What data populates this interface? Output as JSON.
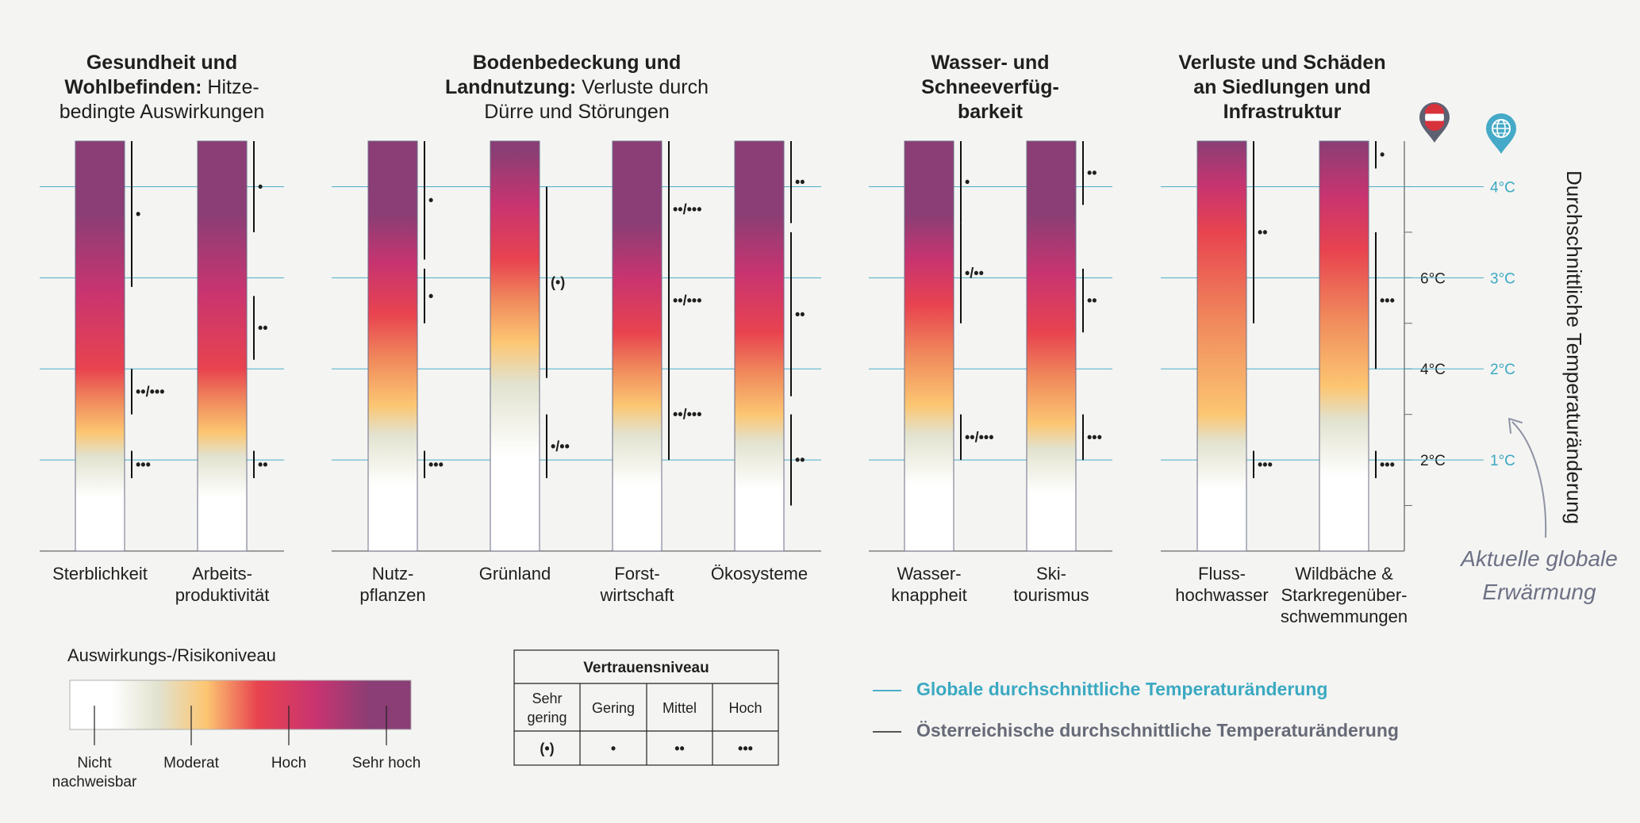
{
  "chart_data": {
    "type": "heatmap",
    "ylabel": "Durchschnittliche Temperaturänderung",
    "global_ticks": [
      "1°C",
      "2°C",
      "3°C",
      "4°C"
    ],
    "austria_ticks": [
      "2°C",
      "4°C",
      "6°C"
    ],
    "global_range_c": [
      0.0,
      4.5
    ],
    "austria_range_c": [
      0.0,
      9.0
    ],
    "current_warming_label": "Aktuelle globale Erwärmung",
    "groups": [
      {
        "title_bold": [
          "Gesundheit und",
          "Wohlbefinden:"
        ],
        "title_regular": [
          "Hitze-",
          "bedingte Auswirkungen"
        ],
        "bars": [
          {
            "label": [
              "Sterblichkeit"
            ],
            "stops_c": {
              "moderat": 1.3,
              "hoch": 2.0,
              "sehr_hoch": 3.7
            },
            "confidence": [
              {
                "text": "•••",
                "from_c": 0.8,
                "to_c": 1.1
              },
              {
                "text": "••/•••",
                "from_c": 1.5,
                "to_c": 2.0
              },
              {
                "text": "•",
                "from_c": 2.9,
                "to_c": 4.5
              }
            ]
          },
          {
            "label": [
              "Arbeits-",
              "produktivität"
            ],
            "stops_c": {
              "moderat": 1.3,
              "hoch": 2.0,
              "sehr_hoch": 3.7
            },
            "confidence": [
              {
                "text": "••",
                "from_c": 0.8,
                "to_c": 1.1
              },
              {
                "text": "••",
                "from_c": 2.1,
                "to_c": 2.8
              },
              {
                "text": "•",
                "from_c": 3.5,
                "to_c": 4.5
              }
            ]
          }
        ]
      },
      {
        "title_bold": [
          "Bodenbedeckung und",
          "Landnutzung:"
        ],
        "title_regular": [
          "Verluste durch",
          "Dürre und Störungen"
        ],
        "bars": [
          {
            "label": [
              "Nutz-",
              "pflanzen"
            ],
            "stops_c": {
              "moderat": 1.6,
              "hoch": 2.6,
              "sehr_hoch": 3.7
            },
            "confidence": [
              {
                "text": "•••",
                "from_c": 0.8,
                "to_c": 1.1
              },
              {
                "text": "•",
                "from_c": 2.5,
                "to_c": 3.1
              },
              {
                "text": "•",
                "from_c": 3.2,
                "to_c": 4.5
              }
            ]
          },
          {
            "label": [
              "Grünland"
            ],
            "stops_c": {
              "moderat": 2.3,
              "hoch": 3.2,
              "sehr_hoch": 4.4
            },
            "confidence": [
              {
                "text": "•/••",
                "from_c": 0.8,
                "to_c": 1.5
              },
              {
                "text": "(•)",
                "from_c": 1.9,
                "to_c": 4.0
              }
            ]
          },
          {
            "label": [
              "Forst-",
              "wirtschaft"
            ],
            "stops_c": {
              "moderat": 1.6,
              "hoch": 2.4,
              "sehr_hoch": 3.6
            },
            "confidence": [
              {
                "text": "••/•••",
                "from_c": 1.0,
                "to_c": 2.0
              },
              {
                "text": "••/•••",
                "from_c": 2.0,
                "to_c": 3.5
              },
              {
                "text": "••/•••",
                "from_c": 3.0,
                "to_c": 4.5
              }
            ]
          },
          {
            "label": [
              "Ökosysteme"
            ],
            "stops_c": {
              "moderat": 1.5,
              "hoch": 2.4,
              "sehr_hoch": 3.7
            },
            "confidence": [
              {
                "text": "••",
                "from_c": 0.5,
                "to_c": 1.5
              },
              {
                "text": "••",
                "from_c": 1.7,
                "to_c": 3.5
              },
              {
                "text": "••",
                "from_c": 3.6,
                "to_c": 4.5
              }
            ]
          }
        ]
      },
      {
        "title_bold": [
          "Wasser- und",
          "Schneeverfüg-",
          "barkeit"
        ],
        "title_regular": [],
        "bars": [
          {
            "label": [
              "Wasser-",
              "knappheit"
            ],
            "stops_c": {
              "moderat": 1.6,
              "hoch": 2.7,
              "sehr_hoch": 3.7
            },
            "confidence": [
              {
                "text": "••/•••",
                "from_c": 1.0,
                "to_c": 1.5
              },
              {
                "text": "•/••",
                "from_c": 2.5,
                "to_c": 3.6
              },
              {
                "text": "•",
                "from_c": 3.6,
                "to_c": 4.5
              }
            ]
          },
          {
            "label": [
              "Ski-",
              "tourismus"
            ],
            "stops_c": {
              "moderat": 1.4,
              "hoch": 2.4,
              "sehr_hoch": 3.7
            },
            "confidence": [
              {
                "text": "•••",
                "from_c": 1.0,
                "to_c": 1.5
              },
              {
                "text": "••",
                "from_c": 2.4,
                "to_c": 3.1
              },
              {
                "text": "••",
                "from_c": 3.8,
                "to_c": 4.5
              }
            ]
          }
        ]
      },
      {
        "title_bold": [
          "Verluste und Schäden",
          "an Siedlungen und",
          "Infrastruktur"
        ],
        "title_regular": [],
        "bars": [
          {
            "label": [
              "Fluss-",
              "hochwasser"
            ],
            "stops_c": {
              "moderat": 1.5,
              "hoch": 3.5,
              "sehr_hoch": 4.5
            },
            "confidence": [
              {
                "text": "•••",
                "from_c": 0.8,
                "to_c": 1.1
              },
              {
                "text": "••",
                "from_c": 2.5,
                "to_c": 4.5
              }
            ]
          },
          {
            "label": [
              "Wildbäche &",
              "Starkregenüber-",
              "schwemmungen"
            ],
            "stops_c": {
              "moderat": 1.8,
              "hoch": 3.3,
              "sehr_hoch": 4.5
            },
            "confidence": [
              {
                "text": "•••",
                "from_c": 0.8,
                "to_c": 1.1
              },
              {
                "text": "•••",
                "from_c": 2.0,
                "to_c": 3.5
              },
              {
                "text": "•",
                "from_c": 4.2,
                "to_c": 4.5
              }
            ]
          }
        ]
      }
    ],
    "risk_legend": {
      "title": "Auswirkungs-/Risikoniveau",
      "levels": [
        [
          "Nicht",
          "nachweisbar"
        ],
        [
          "Moderat"
        ],
        [
          "Hoch"
        ],
        [
          "Sehr hoch"
        ]
      ]
    },
    "confidence_table": {
      "title": "Vertrauensniveau",
      "headers": [
        [
          "Sehr",
          "gering"
        ],
        [
          "Gering"
        ],
        [
          "Mittel"
        ],
        [
          "Hoch"
        ]
      ],
      "symbols": [
        "(•)",
        "•",
        "••",
        "•••"
      ]
    },
    "line_legend": [
      {
        "label": "Globale durchschnittliche Temperaturänderung",
        "color": "#4aaec8"
      },
      {
        "label": "Österreichische durchschnittliche Temperaturänderung",
        "color": "#555555"
      }
    ],
    "colors": {
      "nicht_nachweisbar": "#ffffff",
      "moderat": "#fcc672",
      "hoch": "#e8434f",
      "sehr_hoch": "#8a3e75",
      "global_line": "#4aaec8",
      "austria_line": "#555555",
      "legend_global_text": "#3ba9c2",
      "legend_austria_text": "#666a77",
      "bar_outline": "#6d6f88"
    },
    "icons": [
      "austria-location-pin-icon",
      "globe-location-pin-icon",
      "curved-arrow-icon"
    ]
  }
}
